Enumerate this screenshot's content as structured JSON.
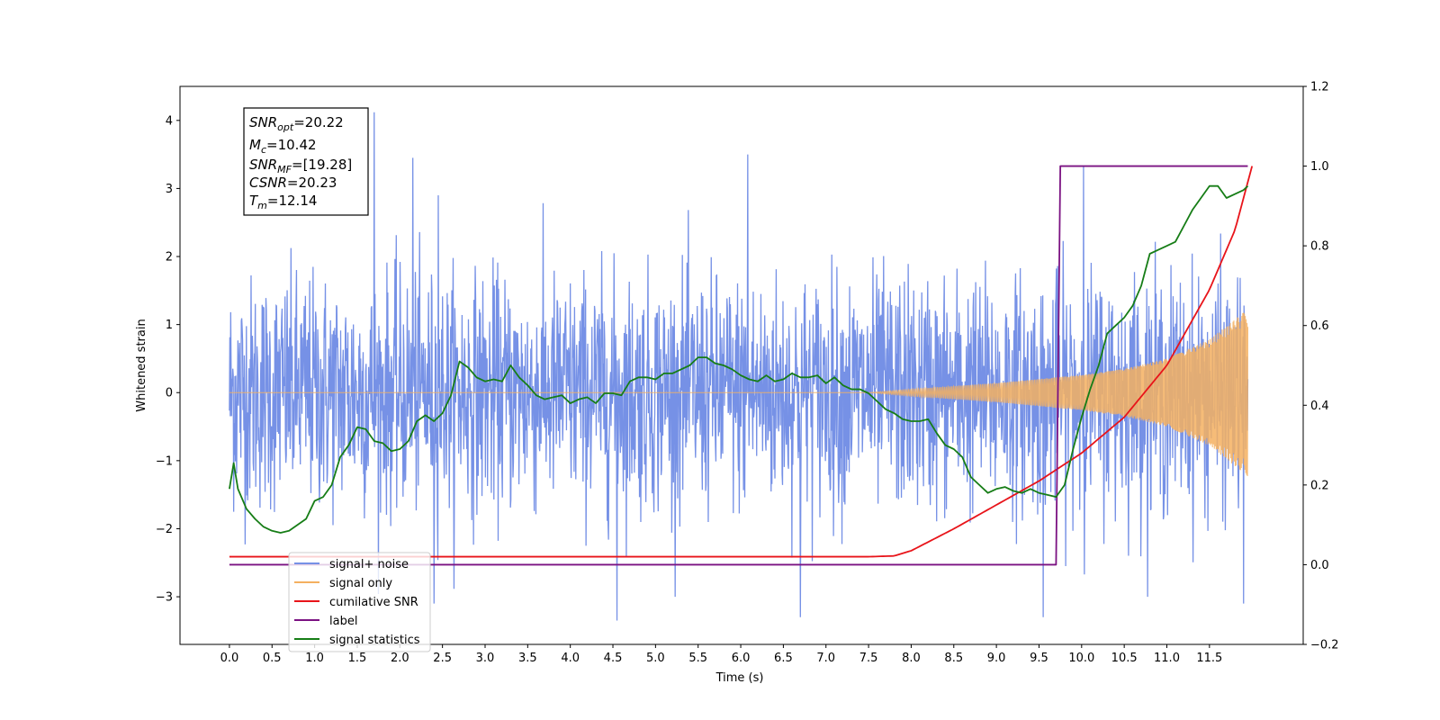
{
  "chart_data": {
    "type": "line",
    "title": "",
    "xlabel": "Time (s)",
    "ylabel": "Whitened strain",
    "xlim": [
      -0.58,
      12.6
    ],
    "ylim": [
      -3.7,
      4.5
    ],
    "y2lim": [
      -0.2,
      1.2
    ],
    "x_ticks": [
      0.0,
      0.5,
      1.0,
      1.5,
      2.0,
      2.5,
      3.0,
      3.5,
      4.0,
      4.5,
      5.0,
      5.5,
      6.0,
      6.5,
      7.0,
      7.5,
      8.0,
      8.5,
      9.0,
      9.5,
      10.0,
      10.5,
      11.0,
      11.5
    ],
    "x_tick_labels": [
      "0.0",
      "0.5",
      "1.0",
      "1.5",
      "2.0",
      "2.5",
      "3.0",
      "3.5",
      "4.0",
      "4.5",
      "5.0",
      "5.5",
      "6.0",
      "6.5",
      "7.0",
      "7.5",
      "8.0",
      "8.5",
      "9.0",
      "9.5",
      "10.0",
      "10.5",
      "11.0",
      "11.5"
    ],
    "y_ticks": [
      -3,
      -2,
      -1,
      0,
      1,
      2,
      3,
      4
    ],
    "y_tick_labels": [
      "−3",
      "−2",
      "−1",
      "0",
      "1",
      "2",
      "3",
      "4"
    ],
    "y2_ticks": [
      -0.2,
      0.0,
      0.2,
      0.4,
      0.6,
      0.8,
      1.0,
      1.2
    ],
    "y2_tick_labels": [
      "−0.2",
      "0.0",
      "0.2",
      "0.4",
      "0.6",
      "0.8",
      "1.0",
      "1.2"
    ],
    "grid": false,
    "legend_placement": "lower-left",
    "annotation": [
      {
        "base": "SNR",
        "sub": "opt",
        "text": "=20.22"
      },
      {
        "base": "M",
        "sub": "c",
        "text": "=10.42"
      },
      {
        "base": "SNR",
        "sub": "MF",
        "text": "=[19.28]"
      },
      {
        "base": "CSNR",
        "sub": "",
        "text": "=20.23"
      },
      {
        "base": "T",
        "sub": "m",
        "text": "=12.14"
      }
    ],
    "series": [
      {
        "name": "signal+ noise",
        "color": "#7691e6",
        "axis": "left",
        "description_of_values": "white noise of roughly unit variance, peaks from about -3.3 to 4.1",
        "peaks": [
          [
            1.7,
            4.12
          ],
          [
            2.15,
            3.45
          ],
          [
            6.08,
            3.5
          ],
          [
            10.02,
            3.33
          ],
          [
            2.45,
            2.9
          ],
          [
            9.55,
            -3.3
          ],
          [
            4.55,
            -3.35
          ],
          [
            6.7,
            -3.3
          ],
          [
            2.4,
            -3.1
          ],
          [
            11.9,
            -3.1
          ]
        ],
        "envelope": 1.9
      },
      {
        "name": "signal only",
        "color": "#f4b060",
        "axis": "left",
        "description_of_values": "chirp: zero until ~7.5 s, then oscillation with amplitude growing to about 1.3 at 12.0 s",
        "amplitude": {
          "x": [
            0.0,
            7.5,
            8.0,
            9.0,
            10.0,
            10.5,
            11.0,
            11.5,
            12.0
          ],
          "y": [
            0.0,
            0.0,
            0.05,
            0.14,
            0.26,
            0.35,
            0.5,
            0.78,
            1.28
          ]
        }
      },
      {
        "name": "cumilative SNR",
        "color": "#e8141a",
        "axis": "right",
        "x": [
          0.0,
          7.5,
          7.8,
          8.0,
          8.5,
          9.0,
          9.5,
          10.0,
          10.5,
          11.0,
          11.5,
          11.8,
          12.0
        ],
        "y": [
          0.02,
          0.02,
          0.022,
          0.035,
          0.09,
          0.15,
          0.21,
          0.28,
          0.37,
          0.5,
          0.69,
          0.84,
          1.0
        ]
      },
      {
        "name": "label",
        "color": "#7b1282",
        "axis": "right",
        "x": [
          0.0,
          9.7,
          9.75,
          11.95
        ],
        "y": [
          0.0,
          0.0,
          1.0,
          1.0
        ]
      },
      {
        "name": "signal statistics",
        "color": "#167d16",
        "axis": "right",
        "x": [
          0.0,
          0.05,
          0.1,
          0.2,
          0.3,
          0.4,
          0.5,
          0.6,
          0.7,
          0.8,
          0.9,
          1.0,
          1.1,
          1.2,
          1.3,
          1.4,
          1.5,
          1.6,
          1.7,
          1.8,
          1.9,
          2.0,
          2.1,
          2.2,
          2.3,
          2.4,
          2.5,
          2.6,
          2.7,
          2.8,
          2.9,
          3.0,
          3.1,
          3.2,
          3.3,
          3.4,
          3.5,
          3.6,
          3.7,
          3.8,
          3.9,
          4.0,
          4.1,
          4.2,
          4.3,
          4.4,
          4.5,
          4.6,
          4.7,
          4.8,
          4.9,
          5.0,
          5.1,
          5.2,
          5.3,
          5.4,
          5.5,
          5.6,
          5.7,
          5.8,
          5.9,
          6.0,
          6.1,
          6.2,
          6.3,
          6.4,
          6.5,
          6.6,
          6.7,
          6.8,
          6.9,
          7.0,
          7.1,
          7.2,
          7.3,
          7.4,
          7.5,
          7.6,
          7.7,
          7.8,
          7.9,
          8.0,
          8.1,
          8.2,
          8.3,
          8.4,
          8.5,
          8.6,
          8.7,
          8.8,
          8.9,
          9.0,
          9.1,
          9.2,
          9.3,
          9.4,
          9.5,
          9.6,
          9.7,
          9.8,
          9.9,
          10.0,
          10.1,
          10.2,
          10.3,
          10.4,
          10.5,
          10.6,
          10.7,
          10.8,
          10.9,
          11.0,
          11.1,
          11.2,
          11.3,
          11.4,
          11.5,
          11.6,
          11.7,
          11.8,
          11.9,
          11.95
        ],
        "y": [
          0.19,
          0.255,
          0.19,
          0.14,
          0.115,
          0.095,
          0.085,
          0.08,
          0.085,
          0.1,
          0.115,
          0.16,
          0.17,
          0.2,
          0.27,
          0.3,
          0.345,
          0.34,
          0.31,
          0.305,
          0.285,
          0.29,
          0.31,
          0.36,
          0.375,
          0.36,
          0.38,
          0.425,
          0.51,
          0.495,
          0.47,
          0.46,
          0.465,
          0.46,
          0.5,
          0.47,
          0.45,
          0.425,
          0.415,
          0.42,
          0.425,
          0.405,
          0.415,
          0.42,
          0.405,
          0.43,
          0.43,
          0.425,
          0.46,
          0.47,
          0.47,
          0.465,
          0.48,
          0.48,
          0.49,
          0.5,
          0.52,
          0.52,
          0.505,
          0.5,
          0.49,
          0.475,
          0.465,
          0.46,
          0.475,
          0.46,
          0.465,
          0.48,
          0.47,
          0.47,
          0.475,
          0.455,
          0.47,
          0.45,
          0.44,
          0.44,
          0.43,
          0.41,
          0.39,
          0.38,
          0.365,
          0.36,
          0.36,
          0.365,
          0.33,
          0.3,
          0.29,
          0.27,
          0.22,
          0.2,
          0.18,
          0.19,
          0.195,
          0.185,
          0.18,
          0.19,
          0.18,
          0.175,
          0.17,
          0.2,
          0.29,
          0.37,
          0.44,
          0.5,
          0.58,
          0.6,
          0.62,
          0.65,
          0.7,
          0.78,
          0.79,
          0.8,
          0.81,
          0.85,
          0.89,
          0.92,
          0.95,
          0.95,
          0.92,
          0.93,
          0.94,
          0.95
        ]
      }
    ],
    "legend": [
      {
        "name": "signal+ noise",
        "color": "#7691e6"
      },
      {
        "name": "signal only",
        "color": "#f4b060"
      },
      {
        "name": "cumilative SNR",
        "color": "#e8141a"
      },
      {
        "name": "label",
        "color": "#7b1282"
      },
      {
        "name": "signal statistics",
        "color": "#167d16"
      }
    ]
  }
}
